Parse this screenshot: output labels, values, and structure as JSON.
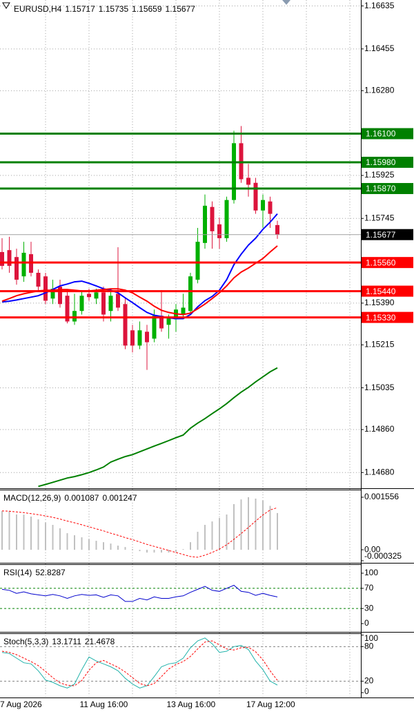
{
  "chart_data": [
    {
      "type": "candlestick",
      "title": "EURUSD,H4",
      "categories": [
        "7 Aug 2026",
        null,
        null,
        null,
        null,
        null,
        null,
        null,
        null,
        null,
        null,
        "11 Aug 16:00",
        null,
        null,
        null,
        null,
        null,
        null,
        null,
        null,
        null,
        null,
        null,
        "13 Aug 16:00",
        null,
        null,
        null,
        null,
        null,
        null,
        null,
        null,
        null,
        null,
        "17 Aug 12:00",
        null,
        null,
        null,
        null
      ],
      "open": [
        1.15604,
        1.15612,
        1.15583,
        1.15502,
        1.15595,
        1.15517,
        1.15502,
        1.15409,
        1.15459,
        1.15421,
        1.15313,
        1.15357,
        1.15429,
        1.15409,
        1.15435,
        1.15357,
        1.15429,
        1.15386,
        1.15276,
        1.15212,
        1.1527,
        1.15241,
        1.15337,
        1.15299,
        1.15322,
        1.15342,
        1.15357,
        1.15488,
        1.15642,
        1.15793,
        1.1572,
        1.15662,
        1.15822,
        1.1606,
        1.15915,
        1.15894,
        1.15778,
        1.15816,
        1.15717
      ],
      "high": [
        1.15662,
        1.15668,
        1.15618,
        1.15647,
        1.15647,
        1.15531,
        1.15517,
        1.15488,
        1.15488,
        1.15444,
        1.15429,
        1.15444,
        1.1545,
        1.1545,
        1.15459,
        1.1545,
        1.15624,
        1.15415,
        1.15299,
        1.15313,
        1.15299,
        1.15363,
        1.15444,
        1.15342,
        1.15386,
        1.15429,
        1.15517,
        1.15705,
        1.15845,
        1.15816,
        1.15749,
        1.15836,
        1.16112,
        1.16132,
        1.15973,
        1.15915,
        1.15845,
        1.15836,
        1.15735
      ],
      "low": [
        1.15531,
        1.15517,
        1.15467,
        1.15479,
        1.15502,
        1.15444,
        1.15386,
        1.15386,
        1.15371,
        1.15305,
        1.15299,
        1.15342,
        1.154,
        1.15386,
        1.15313,
        1.15313,
        1.15357,
        1.15197,
        1.15183,
        1.15197,
        1.1511,
        1.15226,
        1.1527,
        1.15241,
        1.1527,
        1.15328,
        1.15342,
        1.15473,
        1.15618,
        1.15618,
        1.15618,
        1.15647,
        1.15807,
        1.15894,
        1.15836,
        1.15764,
        1.15705,
        1.15705,
        1.15659
      ],
      "close": [
        1.15546,
        1.15546,
        1.15488,
        1.15601,
        1.15517,
        1.15459,
        1.154,
        1.1545,
        1.15386,
        1.15313,
        1.15357,
        1.15421,
        1.15415,
        1.15435,
        1.15342,
        1.15421,
        1.15371,
        1.15212,
        1.15212,
        1.15276,
        1.15226,
        1.15337,
        1.15284,
        1.15328,
        1.15363,
        1.15371,
        1.15502,
        1.15647,
        1.15798,
        1.15691,
        1.15662,
        1.15822,
        1.1606,
        1.15909,
        1.15886,
        1.15778,
        1.15822,
        1.15764,
        1.15677
      ],
      "up_color": "#00b000",
      "down_color": "#dc143c",
      "lines": [
        {
          "color": "#0000ff",
          "values": [
            1.15395,
            1.15398,
            1.15403,
            1.15409,
            1.15415,
            1.15421,
            1.15433,
            1.15447,
            1.15462,
            1.1547,
            1.15479,
            1.15482,
            1.15473,
            1.15462,
            1.1545,
            1.15444,
            1.15433,
            1.15412,
            1.15392,
            1.15371,
            1.15351,
            1.15339,
            1.15334,
            1.15328,
            1.15325,
            1.15325,
            1.15342,
            1.15374,
            1.154,
            1.15418,
            1.15444,
            1.15488,
            1.15551,
            1.15595,
            1.15633,
            1.15662,
            1.15699,
            1.15729,
            1.15764
          ]
        },
        {
          "color": "#ff0000",
          "values": [
            1.15398,
            1.15409,
            1.15421,
            1.15429,
            1.15435,
            1.15441,
            1.15444,
            1.15444,
            1.15447,
            1.15447,
            1.15444,
            1.15441,
            1.15441,
            1.15444,
            1.15447,
            1.1545,
            1.1545,
            1.15444,
            1.15433,
            1.15415,
            1.15398,
            1.15377,
            1.1536,
            1.15351,
            1.15345,
            1.15342,
            1.15348,
            1.15366,
            1.15386,
            1.15409,
            1.15433,
            1.15462,
            1.15496,
            1.1552,
            1.15537,
            1.15557,
            1.15577,
            1.15604,
            1.1563
          ]
        },
        {
          "color": "#008000",
          "values": [
            null,
            null,
            null,
            null,
            null,
            1.14622,
            1.1463,
            1.14639,
            1.14648,
            1.14657,
            1.14663,
            1.14671,
            1.1468,
            1.14691,
            1.14703,
            1.14724,
            1.14736,
            1.14747,
            1.14755,
            1.14767,
            1.14779,
            1.14791,
            1.14802,
            1.14814,
            1.14826,
            1.14837,
            1.14866,
            1.14887,
            1.14906,
            1.14927,
            1.14947,
            1.14969,
            1.14994,
            1.15017,
            1.15037,
            1.1506,
            1.15081,
            1.15102,
            1.15119
          ]
        }
      ],
      "levels": [
        {
          "value": 1.161,
          "label": "1.16100",
          "color": "#008000"
        },
        {
          "value": 1.1598,
          "label": "1.15980",
          "color": "#008000"
        },
        {
          "value": 1.1587,
          "label": "1.15870",
          "color": "#008000"
        },
        {
          "value": 1.1556,
          "label": "1.15560",
          "color": "#ff0000"
        },
        {
          "value": 1.1544,
          "label": "1.15440",
          "color": "#ff0000"
        },
        {
          "value": 1.1533,
          "label": "1.15330",
          "color": "#ff0000"
        }
      ],
      "ylim": [
        1.1462,
        1.1666
      ],
      "yticks": [
        1.16635,
        1.16455,
        {
          "value": 1.1628,
          "label": "1.16280"
        },
        1.15925,
        1.15745,
        {
          "value": 1.1539,
          "label": "1.15390"
        },
        1.15215,
        1.15035,
        {
          "value": 1.1486,
          "label": "1.14860"
        },
        {
          "value": 1.1468,
          "label": "1.14680"
        }
      ],
      "grid": true
    },
    {
      "type": "macd",
      "title": "MACD(12,26,9)",
      "series": [
        {
          "color": "#c0c0c0",
          "values": [
            0.001147,
            0.001147,
            0.001044,
            0.001044,
            0.000983,
            0.000901,
            0.000798,
            0.000737,
            0.000635,
            0.000491,
            0.00043,
            0.000369,
            0.000307,
            0.000266,
            0.000225,
            0.000184,
            0.000123,
            8.2e-05,
            2e-05,
            -4.1e-05,
            -8.2e-05,
            -8.2e-05,
            -8.2e-05,
            -8.2e-05,
            -6.1e-05,
            2e-05,
            0.000225,
            0.000532,
            0.000737,
            0.000839,
            0.000942,
            0.001044,
            0.001351,
            0.00149,
            0.001556,
            0.001515,
            0.001454,
            0.0013,
            0.001087
          ]
        },
        {
          "color": "#ff0000",
          "values": [
            0.00115,
            0.00114,
            0.00112,
            0.0011,
            0.00107,
            0.00104,
            0.001,
            0.00096,
            0.00091,
            0.00085,
            0.0008,
            0.00074,
            0.00068,
            0.00062,
            0.00056,
            0.00049,
            0.00043,
            0.00036,
            0.0003,
            0.00023,
            0.00016,
            0.0001,
            4e-05,
            -2e-05,
            -8e-05,
            -0.00014,
            -0.0002,
            -0.00022,
            -0.00016,
            -8e-05,
            2e-05,
            0.00015,
            0.00031,
            0.00048,
            0.00066,
            0.00085,
            0.00103,
            0.00118,
            0.001247
          ]
        }
      ],
      "ylim": [
        -0.000325,
        0.00176
      ],
      "yticks": [
        0.001556,
        {
          "value": 0,
          "label": "0.00"
        },
        -0.000325
      ]
    },
    {
      "type": "line",
      "title": "RSI(14)",
      "series": [
        {
          "color": "#0000cd",
          "values": [
            68,
            66,
            60,
            63,
            59,
            57,
            55,
            58,
            55,
            50,
            55,
            58,
            56,
            57,
            52,
            57,
            55,
            44,
            44,
            50,
            47,
            53,
            50,
            50,
            53,
            55,
            62,
            68,
            74,
            66,
            64,
            70,
            76,
            64,
            62,
            56,
            60,
            56,
            52.8287
          ]
        }
      ],
      "ylim": [
        -12.3,
        116.4
      ],
      "yticks": [
        100,
        70,
        30,
        0
      ],
      "levels": [
        70,
        30
      ],
      "level_color": "#008000"
    },
    {
      "type": "line",
      "title": "Stoch(5,3,3)",
      "series": [
        {
          "color": "#20b2aa",
          "values": [
            70,
            68,
            60,
            52,
            50,
            38,
            22,
            18,
            12,
            8,
            15,
            40,
            62,
            55,
            50,
            45,
            38,
            25,
            15,
            8,
            12,
            28,
            45,
            50,
            52,
            60,
            78,
            90,
            95,
            85,
            70,
            72,
            80,
            82,
            75,
            55,
            40,
            20,
            13.1711
          ]
        },
        {
          "color": "#ff0000",
          "dash": true,
          "values": [
            72,
            70,
            66,
            60,
            54,
            47,
            37,
            26,
            17,
            13,
            12,
            21,
            39,
            52,
            56,
            50,
            44,
            36,
            26,
            16,
            12,
            16,
            28,
            41,
            49,
            54,
            63,
            76,
            88,
            90,
            83,
            76,
            74,
            78,
            79,
            71,
            57,
            38,
            21.4678
          ]
        }
      ],
      "ylim": [
        -6,
        102
      ],
      "yticks": [
        100,
        80,
        20,
        0
      ],
      "levels": [
        80,
        20
      ],
      "level_color": "#808080"
    }
  ]
}
